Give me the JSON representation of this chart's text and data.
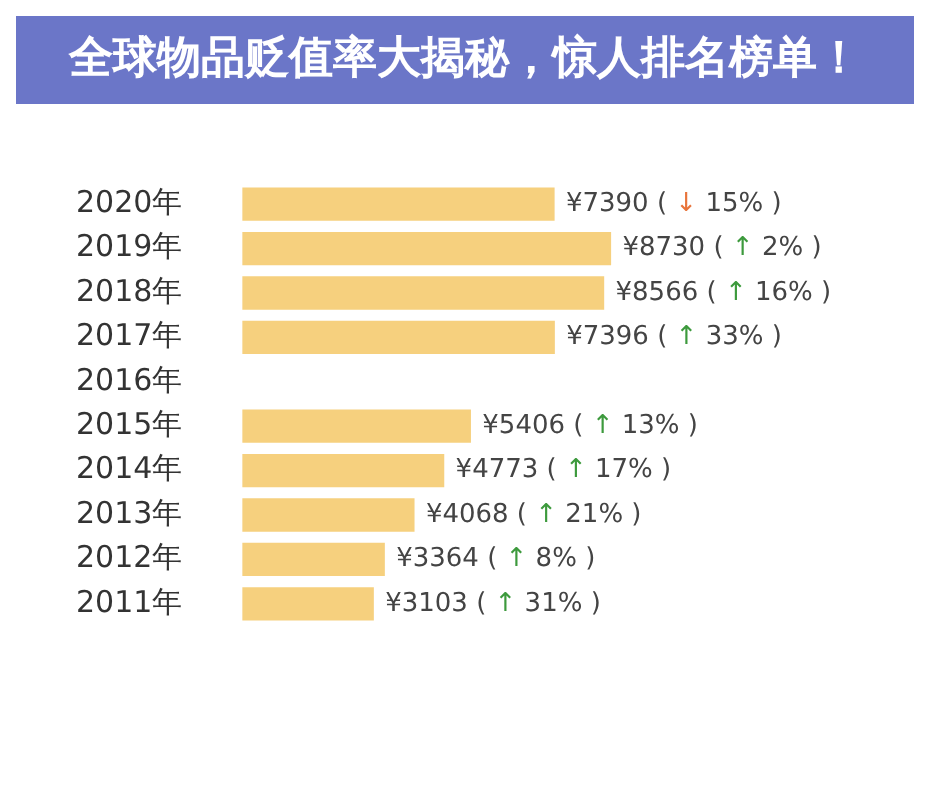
{
  "chart_data": {
    "type": "bar",
    "orientation": "horizontal",
    "title": "全球物品贬值率大揭秘，惊人排名榜单！",
    "categories": [
      "2020年",
      "2019年",
      "2018年",
      "2017年",
      "2016年",
      "2015年",
      "2014年",
      "2013年",
      "2012年",
      "2011年"
    ],
    "values": [
      7390,
      8730,
      8566,
      7396,
      null,
      5406,
      4773,
      4068,
      3364,
      3103
    ],
    "value_labels": [
      "¥7390",
      "¥8730",
      "¥8566",
      "¥7396",
      null,
      "¥5406",
      "¥4773",
      "¥4068",
      "¥3364",
      "¥3103"
    ],
    "annotations": [
      "( ↓ 15% )",
      "( ↑ 2% )",
      "( ↑ 16% )",
      "( ↑ 33% )",
      "( ↑ 13% )",
      "( ↑ 17% )",
      "( ↑ 21% )",
      "( ↑ 8% )",
      "( ↑ 31% )"
    ],
    "color": "#f6d07e",
    "grid": false,
    "legend": false
  }
}
